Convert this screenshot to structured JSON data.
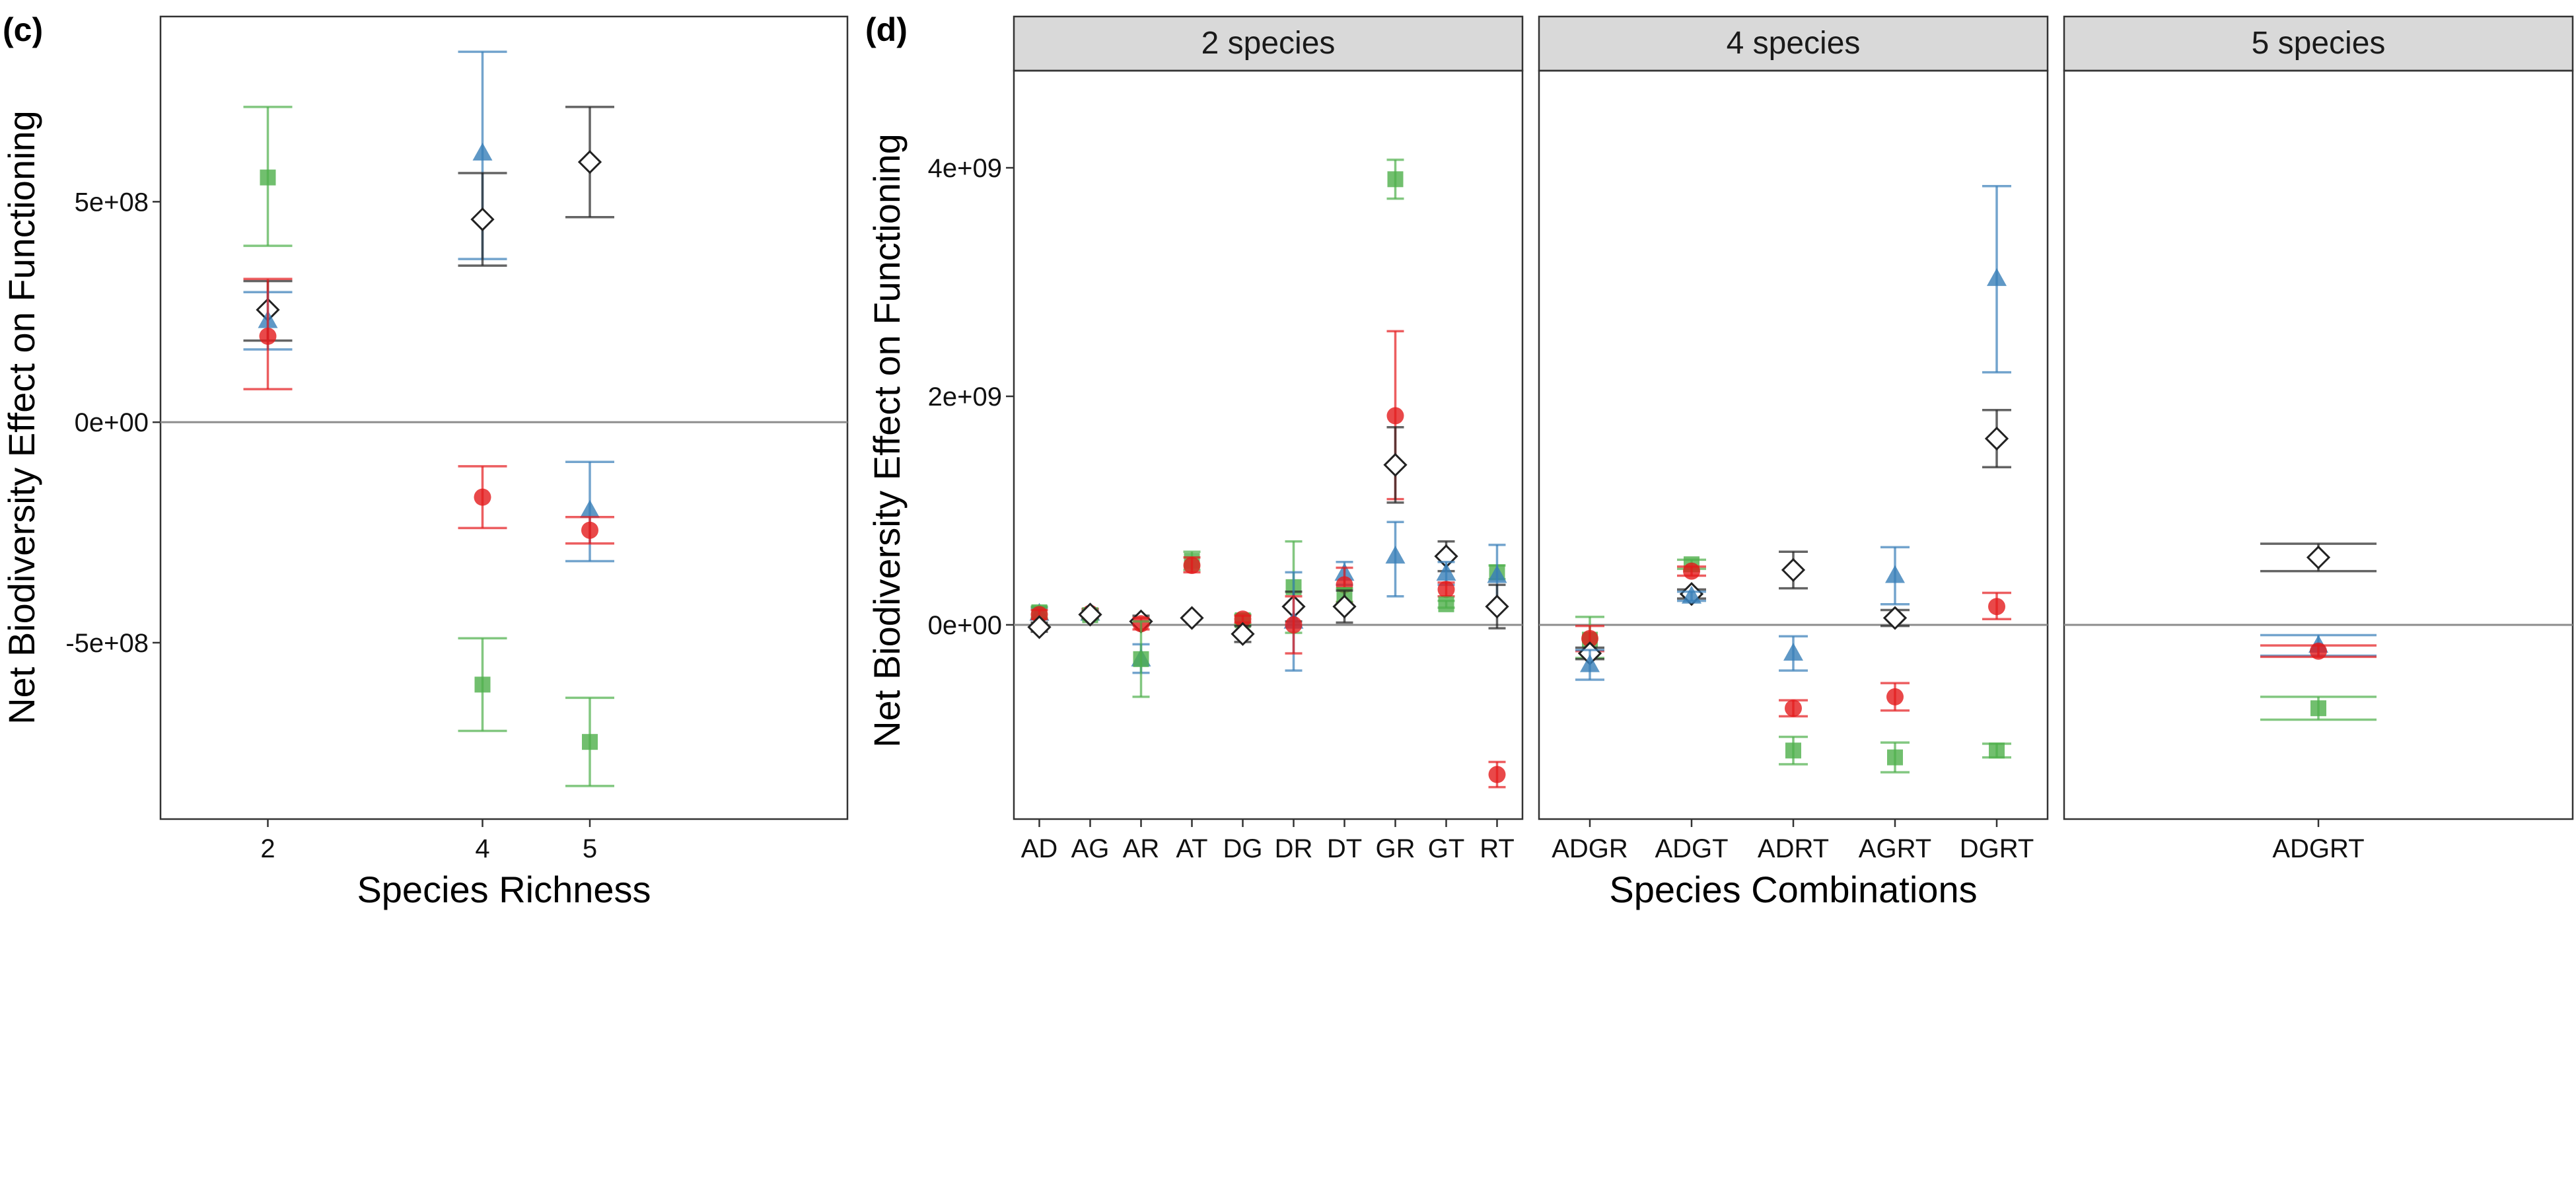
{
  "figure": {
    "panel_c_tag": "(c)",
    "panel_d_tag": "(d)"
  },
  "colors": {
    "red": "#E41A1C",
    "green": "#4DAF4A",
    "blue": "#377EB8",
    "black": "#222222",
    "strip_bg": "#D9D9D9",
    "zero_line": "#8C8C8C"
  },
  "chart_data": [
    {
      "type": "scatter",
      "panel": "(c)",
      "xlabel": "Species Richness",
      "ylabel": "Net Biodiversity Effect on Functioning",
      "x_ticks": [
        2,
        4,
        5
      ],
      "y_ticks": [
        -500000000,
        0,
        500000000
      ],
      "y_tick_labels": [
        "-5e+08",
        "0e+00",
        "5e+08"
      ],
      "xlim": [
        1.0,
        7.4
      ],
      "ylim": [
        -900000000,
        920000000
      ],
      "hline": 0,
      "grid": false,
      "legend": "none",
      "marker_shapes": {
        "red": "circle",
        "green": "square",
        "blue": "triangle",
        "black": "open-diamond"
      },
      "points": [
        {
          "x": 2,
          "color": "green",
          "y": 555000000,
          "lo": 400000000,
          "hi": 715000000
        },
        {
          "x": 2,
          "color": "black",
          "y": 255000000,
          "lo": 185000000,
          "hi": 320000000
        },
        {
          "x": 2,
          "color": "blue",
          "y": 230000000,
          "lo": 165000000,
          "hi": 295000000
        },
        {
          "x": 2,
          "color": "red",
          "y": 195000000,
          "lo": 75000000,
          "hi": 325000000
        },
        {
          "x": 4,
          "color": "blue",
          "y": 610000000,
          "lo": 370000000,
          "hi": 840000000
        },
        {
          "x": 4,
          "color": "black",
          "y": 460000000,
          "lo": 355000000,
          "hi": 565000000
        },
        {
          "x": 4,
          "color": "red",
          "y": -170000000,
          "lo": -240000000,
          "hi": -100000000
        },
        {
          "x": 4,
          "color": "green",
          "y": -595000000,
          "lo": -700000000,
          "hi": -490000000
        },
        {
          "x": 5,
          "color": "black",
          "y": 590000000,
          "lo": 465000000,
          "hi": 715000000
        },
        {
          "x": 5,
          "color": "blue",
          "y": -200000000,
          "lo": -315000000,
          "hi": -90000000
        },
        {
          "x": 5,
          "color": "red",
          "y": -245000000,
          "lo": -275000000,
          "hi": -215000000
        },
        {
          "x": 5,
          "color": "green",
          "y": -725000000,
          "lo": -825000000,
          "hi": -625000000
        }
      ]
    },
    {
      "type": "scatter",
      "panel": "(d)",
      "xlabel": "Species Combinations",
      "ylabel": "Net Biodiversity Effect on Functioning",
      "y_ticks": [
        0,
        2000000000,
        4000000000
      ],
      "y_tick_labels": [
        "0e+00",
        "2e+09",
        "4e+09"
      ],
      "ylim": [
        -1700000000,
        4850000000
      ],
      "hline": 0,
      "grid": false,
      "legend": "none",
      "facets": [
        {
          "title": "2 species",
          "categories": [
            "AD",
            "AG",
            "AR",
            "AT",
            "DG",
            "DR",
            "DT",
            "GR",
            "GT",
            "RT"
          ],
          "points": [
            {
              "c": "AD",
              "color": "blue",
              "y": 100000000,
              "lo": 50000000,
              "hi": 150000000
            },
            {
              "c": "AD",
              "color": "green",
              "y": 110000000,
              "lo": 60000000,
              "hi": 160000000
            },
            {
              "c": "AD",
              "color": "red",
              "y": 90000000,
              "lo": 50000000,
              "hi": 130000000
            },
            {
              "c": "AD",
              "color": "black",
              "y": -20000000,
              "lo": -60000000,
              "hi": 20000000
            },
            {
              "c": "AG",
              "color": "blue",
              "y": 100000000,
              "lo": 60000000,
              "hi": 140000000
            },
            {
              "c": "AG",
              "color": "red",
              "y": 100000000,
              "lo": 60000000,
              "hi": 140000000
            },
            {
              "c": "AG",
              "color": "green",
              "y": 85000000,
              "lo": 50000000,
              "hi": 120000000
            },
            {
              "c": "AG",
              "color": "black",
              "y": 90000000,
              "lo": 60000000,
              "hi": 120000000
            },
            {
              "c": "AR",
              "color": "black",
              "y": 30000000,
              "lo": 0,
              "hi": 80000000
            },
            {
              "c": "AR",
              "color": "red",
              "y": 10000000,
              "lo": -40000000,
              "hi": 60000000
            },
            {
              "c": "AR",
              "color": "blue",
              "y": -300000000,
              "lo": -420000000,
              "hi": -170000000
            },
            {
              "c": "AR",
              "color": "green",
              "y": -300000000,
              "lo": -630000000,
              "hi": 30000000
            },
            {
              "c": "AT",
              "color": "green",
              "y": 560000000,
              "lo": 480000000,
              "hi": 640000000
            },
            {
              "c": "AT",
              "color": "red",
              "y": 520000000,
              "lo": 460000000,
              "hi": 590000000
            },
            {
              "c": "AT",
              "color": "black",
              "y": 60000000,
              "lo": 40000000,
              "hi": 80000000
            },
            {
              "c": "DG",
              "color": "green",
              "y": 40000000,
              "lo": 0,
              "hi": 90000000
            },
            {
              "c": "DG",
              "color": "red",
              "y": 50000000,
              "lo": 20000000,
              "hi": 80000000
            },
            {
              "c": "DG",
              "color": "black",
              "y": -80000000,
              "lo": -150000000,
              "hi": -10000000
            },
            {
              "c": "DR",
              "color": "green",
              "y": 330000000,
              "lo": -70000000,
              "hi": 730000000
            },
            {
              "c": "DR",
              "color": "black",
              "y": 160000000,
              "lo": 30000000,
              "hi": 290000000
            },
            {
              "c": "DR",
              "color": "blue",
              "y": 30000000,
              "lo": -400000000,
              "hi": 460000000
            },
            {
              "c": "DR",
              "color": "red",
              "y": 0,
              "lo": -250000000,
              "hi": 250000000
            },
            {
              "c": "DT",
              "color": "blue",
              "y": 450000000,
              "lo": 350000000,
              "hi": 550000000
            },
            {
              "c": "DT",
              "color": "red",
              "y": 350000000,
              "lo": 200000000,
              "hi": 500000000
            },
            {
              "c": "DT",
              "color": "green",
              "y": 260000000,
              "lo": 200000000,
              "hi": 320000000
            },
            {
              "c": "DT",
              "color": "black",
              "y": 160000000,
              "lo": 20000000,
              "hi": 300000000
            },
            {
              "c": "GR",
              "color": "green",
              "y": 3900000000,
              "lo": 3730000000,
              "hi": 4070000000
            },
            {
              "c": "GR",
              "color": "red",
              "y": 1830000000,
              "lo": 1100000000,
              "hi": 2570000000
            },
            {
              "c": "GR",
              "color": "black",
              "y": 1400000000,
              "lo": 1070000000,
              "hi": 1730000000
            },
            {
              "c": "GR",
              "color": "blue",
              "y": 600000000,
              "lo": 250000000,
              "hi": 900000000
            },
            {
              "c": "GT",
              "color": "black",
              "y": 600000000,
              "lo": 470000000,
              "hi": 730000000
            },
            {
              "c": "GT",
              "color": "blue",
              "y": 450000000,
              "lo": 350000000,
              "hi": 550000000
            },
            {
              "c": "GT",
              "color": "red",
              "y": 310000000,
              "lo": 250000000,
              "hi": 370000000
            },
            {
              "c": "GT",
              "color": "green",
              "y": 180000000,
              "lo": 150000000,
              "hi": 210000000
            },
            {
              "c": "RT",
              "color": "green",
              "y": 460000000,
              "lo": 400000000,
              "hi": 520000000
            },
            {
              "c": "RT",
              "color": "blue",
              "y": 430000000,
              "lo": 170000000,
              "hi": 700000000
            },
            {
              "c": "RT",
              "color": "black",
              "y": 160000000,
              "lo": -30000000,
              "hi": 350000000
            },
            {
              "c": "RT",
              "color": "red",
              "y": -1310000000,
              "lo": -1420000000,
              "hi": -1200000000
            }
          ]
        },
        {
          "title": "4 species",
          "categories": [
            "ADGR",
            "ADGT",
            "ADRT",
            "AGRT",
            "DGRT"
          ],
          "points": [
            {
              "c": "ADGR",
              "color": "green",
              "y": -130000000,
              "lo": -290000000,
              "hi": 70000000
            },
            {
              "c": "ADGR",
              "color": "red",
              "y": -120000000,
              "lo": -230000000,
              "hi": -10000000
            },
            {
              "c": "ADGR",
              "color": "black",
              "y": -250000000,
              "lo": -300000000,
              "hi": -200000000
            },
            {
              "c": "ADGR",
              "color": "blue",
              "y": -350000000,
              "lo": -480000000,
              "hi": -220000000
            },
            {
              "c": "ADGT",
              "color": "green",
              "y": 530000000,
              "lo": 490000000,
              "hi": 570000000
            },
            {
              "c": "ADGT",
              "color": "red",
              "y": 470000000,
              "lo": 430000000,
              "hi": 510000000
            },
            {
              "c": "ADGT",
              "color": "black",
              "y": 270000000,
              "lo": 230000000,
              "hi": 310000000
            },
            {
              "c": "ADGT",
              "color": "blue",
              "y": 250000000,
              "lo": 210000000,
              "hi": 290000000
            },
            {
              "c": "ADRT",
              "color": "black",
              "y": 480000000,
              "lo": 320000000,
              "hi": 640000000
            },
            {
              "c": "ADRT",
              "color": "blue",
              "y": -250000000,
              "lo": -400000000,
              "hi": -100000000
            },
            {
              "c": "ADRT",
              "color": "red",
              "y": -730000000,
              "lo": -800000000,
              "hi": -660000000
            },
            {
              "c": "ADRT",
              "color": "green",
              "y": -1100000000,
              "lo": -1220000000,
              "hi": -980000000
            },
            {
              "c": "AGRT",
              "color": "blue",
              "y": 430000000,
              "lo": 180000000,
              "hi": 680000000
            },
            {
              "c": "AGRT",
              "color": "black",
              "y": 60000000,
              "lo": -10000000,
              "hi": 130000000
            },
            {
              "c": "AGRT",
              "color": "red",
              "y": -630000000,
              "lo": -750000000,
              "hi": -510000000
            },
            {
              "c": "AGRT",
              "color": "green",
              "y": -1160000000,
              "lo": -1290000000,
              "hi": -1030000000
            },
            {
              "c": "DGRT",
              "color": "blue",
              "y": 3030000000,
              "lo": 2210000000,
              "hi": 3840000000
            },
            {
              "c": "DGRT",
              "color": "black",
              "y": 1630000000,
              "lo": 1380000000,
              "hi": 1880000000
            },
            {
              "c": "DGRT",
              "color": "red",
              "y": 160000000,
              "lo": 50000000,
              "hi": 280000000
            },
            {
              "c": "DGRT",
              "color": "green",
              "y": -1100000000,
              "lo": -1160000000,
              "hi": -1040000000
            }
          ]
        },
        {
          "title": "5 species",
          "categories": [
            "ADGRT"
          ],
          "points": [
            {
              "c": "ADGRT",
              "color": "black",
              "y": 590000000,
              "lo": 470000000,
              "hi": 710000000
            },
            {
              "c": "ADGRT",
              "color": "blue",
              "y": -180000000,
              "lo": -270000000,
              "hi": -90000000
            },
            {
              "c": "ADGRT",
              "color": "red",
              "y": -230000000,
              "lo": -280000000,
              "hi": -180000000
            },
            {
              "c": "ADGRT",
              "color": "green",
              "y": -730000000,
              "lo": -830000000,
              "hi": -630000000
            }
          ]
        }
      ]
    }
  ]
}
